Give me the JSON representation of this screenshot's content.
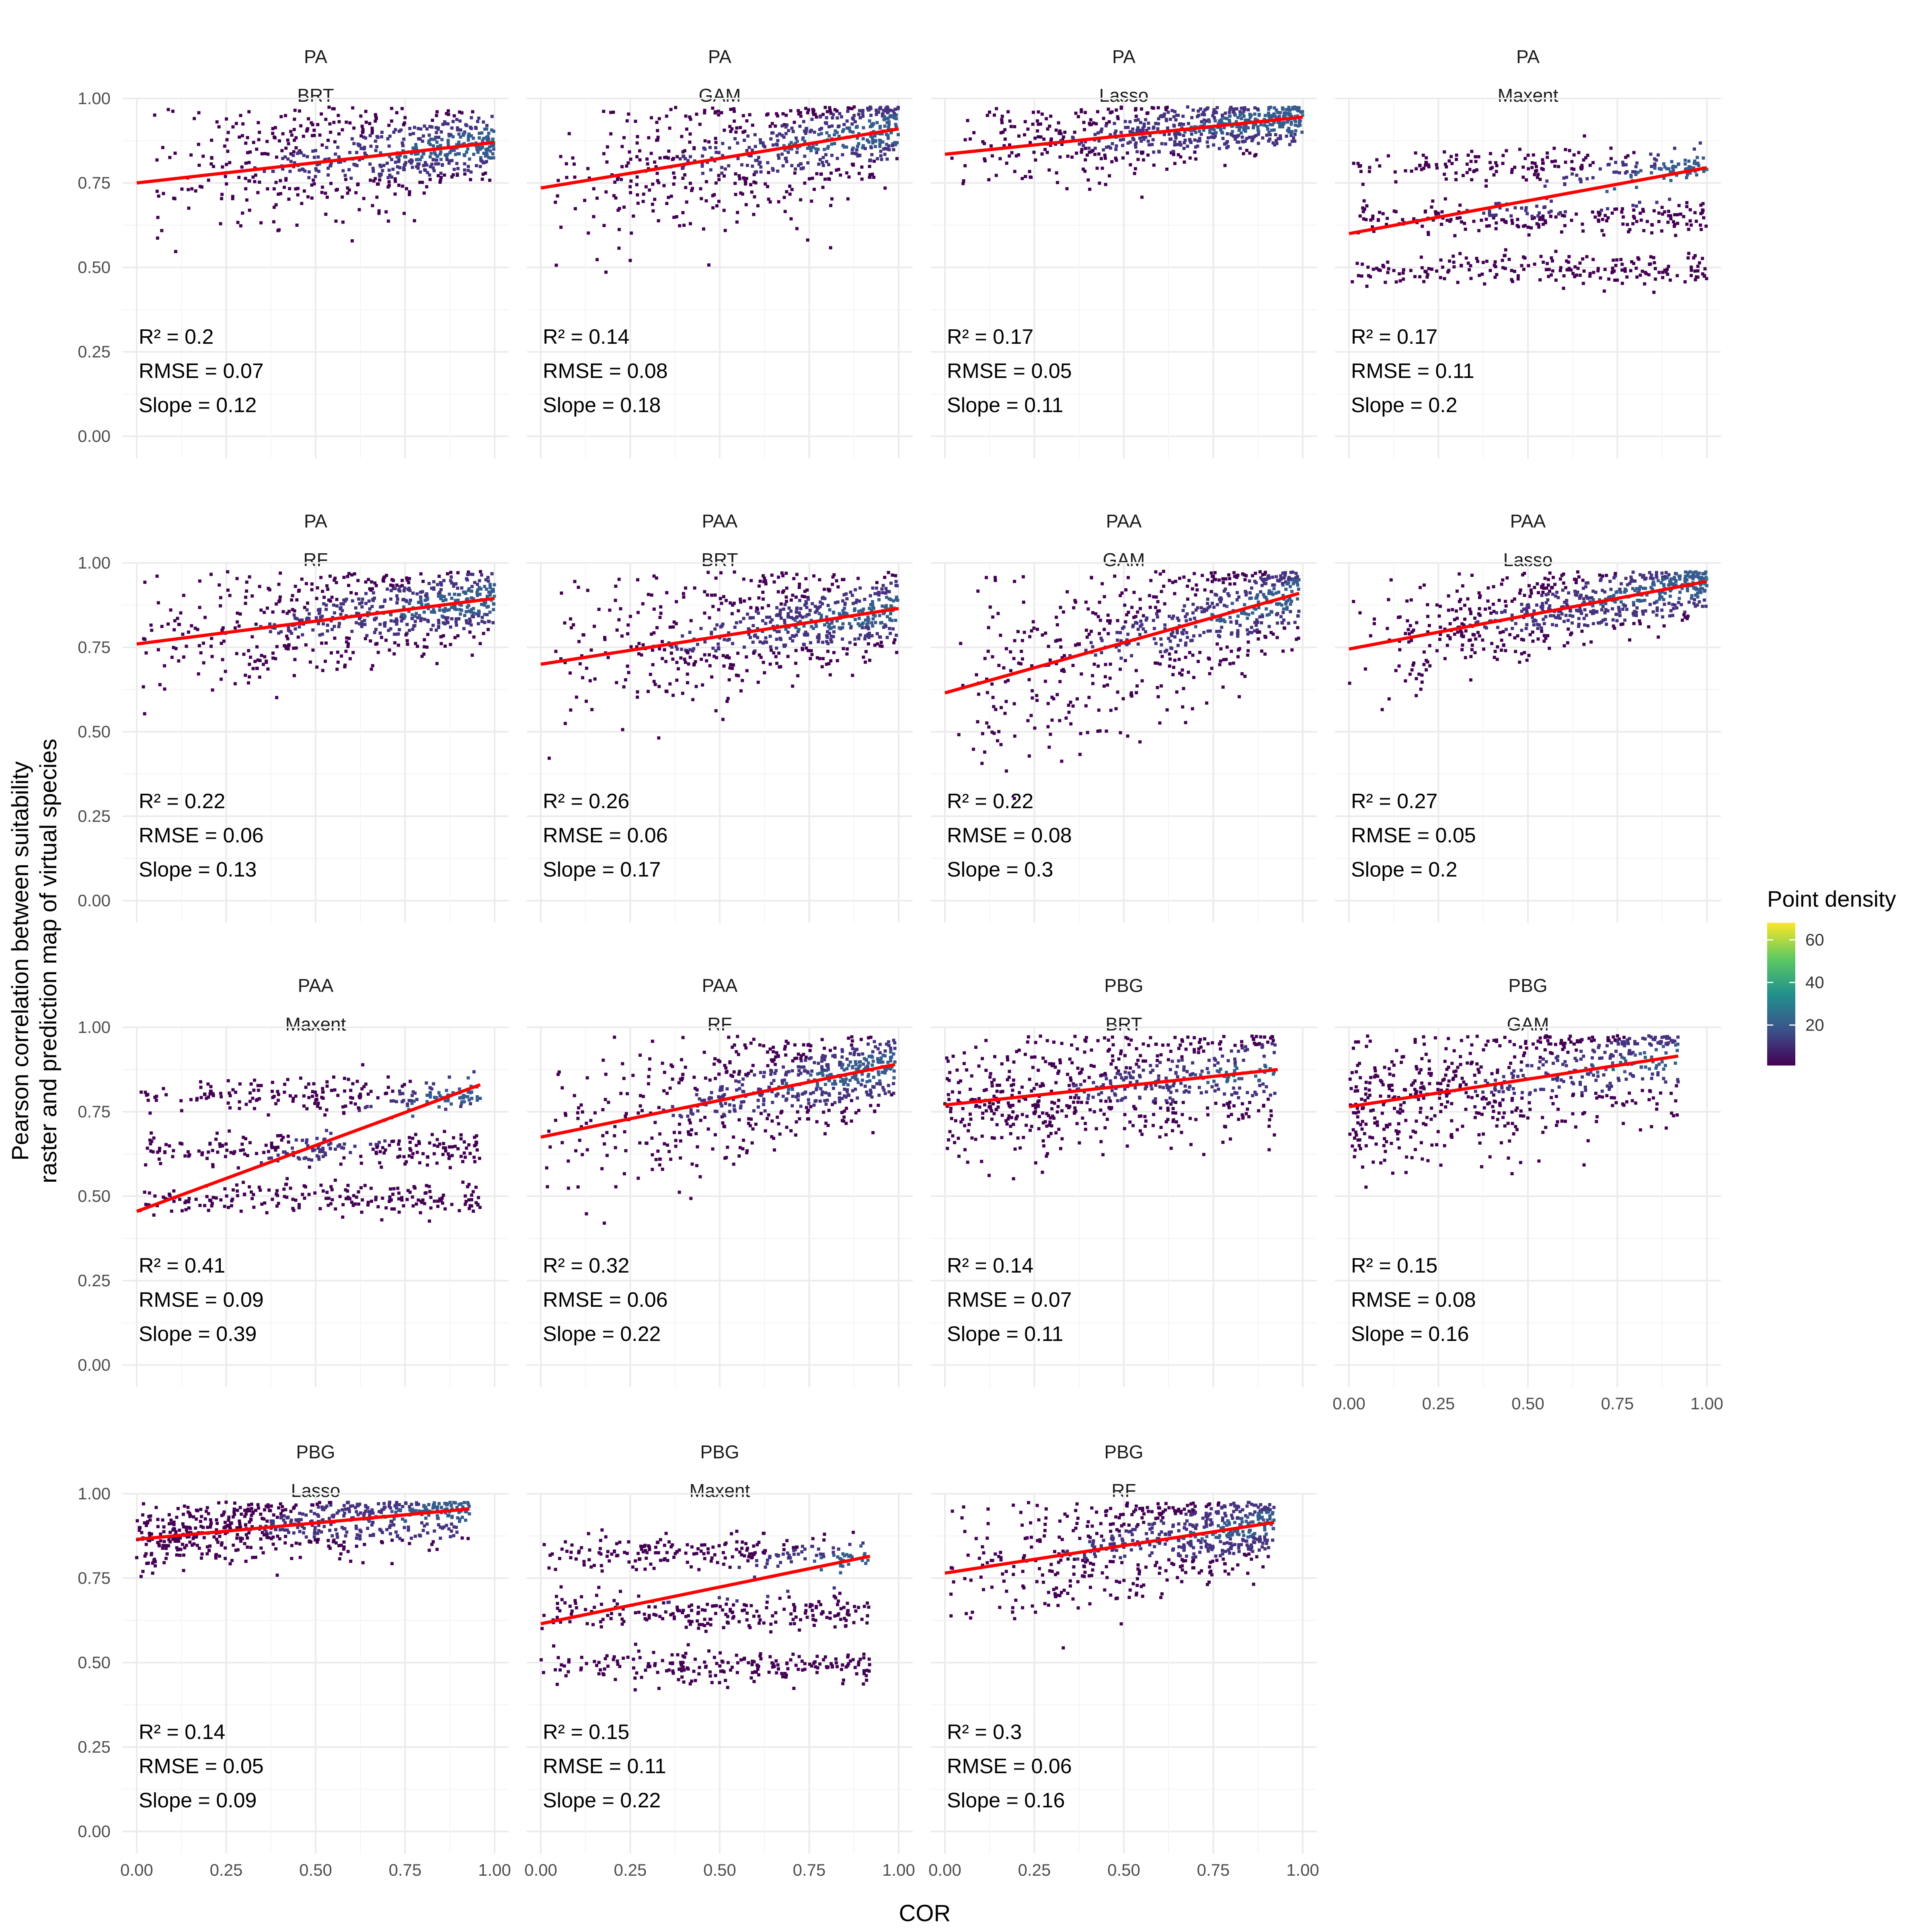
{
  "chart_data": {
    "type": "scatter",
    "xlabel": "COR",
    "ylabel_lines": [
      "Pearson correlation between suitability",
      "raster and prediction map of virtual species"
    ],
    "xlim": [
      0,
      1
    ],
    "ylim": [
      0,
      1
    ],
    "x_ticks": [
      "0.00",
      "0.25",
      "0.50",
      "0.75",
      "1.00"
    ],
    "y_ticks": [
      "0.00",
      "0.25",
      "0.50",
      "0.75",
      "1.00"
    ],
    "grid": true,
    "trend_color": "#ff0000",
    "legend": {
      "title": "Point density",
      "placement": "right",
      "ticks": [
        "20",
        "40",
        "60"
      ],
      "tick_values": [
        20,
        40,
        60
      ],
      "range": [
        1,
        68
      ],
      "colors": [
        "#440154",
        "#3b528b",
        "#21918c",
        "#5ec962",
        "#fde725"
      ]
    },
    "panels": [
      {
        "group": "PA",
        "model": "BRT",
        "r2": "R² = 0.2",
        "rmse": "RMSE = 0.07",
        "slope": "Slope = 0.12",
        "line_x": [
          0,
          1
        ],
        "line_y": [
          0.75,
          0.87
        ],
        "x_range": [
          0,
          1
        ],
        "y_center": 0.82,
        "y_spread": 0.06,
        "cloud": "cone"
      },
      {
        "group": "PA",
        "model": "GAM",
        "r2": "R² = 0.14",
        "rmse": "RMSE = 0.08",
        "slope": "Slope = 0.18",
        "line_x": [
          0,
          1
        ],
        "line_y": [
          0.735,
          0.91
        ],
        "x_range": [
          0,
          1
        ],
        "y_center": 0.83,
        "y_spread": 0.08,
        "cloud": "cone"
      },
      {
        "group": "PA",
        "model": "Lasso",
        "r2": "R² = 0.17",
        "rmse": "RMSE = 0.05",
        "slope": "Slope = 0.11",
        "line_x": [
          0,
          1
        ],
        "line_y": [
          0.835,
          0.945
        ],
        "x_range": [
          0,
          1
        ],
        "y_center": 0.9,
        "y_spread": 0.04,
        "cloud": "cone"
      },
      {
        "group": "PA",
        "model": "Maxent",
        "r2": "R² = 0.17",
        "rmse": "RMSE = 0.11",
        "slope": "Slope = 0.2",
        "line_x": [
          0,
          1
        ],
        "line_y": [
          0.6,
          0.795
        ],
        "x_range": [
          0,
          1
        ],
        "bands": [
          0.8,
          0.65,
          0.49
        ],
        "cloud": "bands"
      },
      {
        "group": "PA",
        "model": "RF",
        "r2": "R² = 0.22",
        "rmse": "RMSE = 0.06",
        "slope": "Slope = 0.13",
        "line_x": [
          0,
          1
        ],
        "line_y": [
          0.76,
          0.895
        ],
        "x_range": [
          0,
          1
        ],
        "y_center": 0.84,
        "y_spread": 0.06,
        "cloud": "cone"
      },
      {
        "group": "PAA",
        "model": "BRT",
        "r2": "R² = 0.26",
        "rmse": "RMSE = 0.06",
        "slope": "Slope = 0.17",
        "line_x": [
          0,
          1
        ],
        "line_y": [
          0.7,
          0.865
        ],
        "x_range": [
          0,
          1
        ],
        "y_center": 0.81,
        "y_spread": 0.07,
        "cloud": "cone"
      },
      {
        "group": "PAA",
        "model": "GAM",
        "r2": "R² = 0.22",
        "rmse": "RMSE = 0.08",
        "slope": "Slope = 0.3",
        "line_x": [
          0,
          0.99
        ],
        "line_y": [
          0.615,
          0.91
        ],
        "x_range": [
          0,
          0.99
        ],
        "y_center": 0.82,
        "y_spread": 0.09,
        "cloud": "cone"
      },
      {
        "group": "PAA",
        "model": "Lasso",
        "r2": "R² = 0.27",
        "rmse": "RMSE = 0.05",
        "slope": "Slope = 0.2",
        "line_x": [
          0,
          1
        ],
        "line_y": [
          0.745,
          0.945
        ],
        "x_range": [
          0,
          1
        ],
        "y_center": 0.88,
        "y_spread": 0.05,
        "cloud": "cone"
      },
      {
        "group": "PAA",
        "model": "Maxent",
        "r2": "R² = 0.41",
        "rmse": "RMSE = 0.09",
        "slope": "Slope = 0.39",
        "line_x": [
          0,
          0.96
        ],
        "line_y": [
          0.455,
          0.83
        ],
        "x_range": [
          0,
          0.96
        ],
        "bands": [
          0.8,
          0.64,
          0.49
        ],
        "cloud": "bands"
      },
      {
        "group": "PAA",
        "model": "RF",
        "r2": "R² = 0.32",
        "rmse": "RMSE = 0.06",
        "slope": "Slope = 0.22",
        "line_x": [
          0,
          0.99
        ],
        "line_y": [
          0.675,
          0.89
        ],
        "x_range": [
          0,
          0.99
        ],
        "y_center": 0.84,
        "y_spread": 0.07,
        "cloud": "cone"
      },
      {
        "group": "PBG",
        "model": "BRT",
        "r2": "R² = 0.14",
        "rmse": "RMSE = 0.07",
        "slope": "Slope = 0.11",
        "line_x": [
          0,
          0.93
        ],
        "line_y": [
          0.77,
          0.875
        ],
        "x_range": [
          0,
          0.93
        ],
        "y_center": 0.8,
        "y_spread": 0.07,
        "cloud": "flat"
      },
      {
        "group": "PBG",
        "model": "GAM",
        "r2": "R² = 0.15",
        "rmse": "RMSE = 0.08",
        "slope": "Slope = 0.16",
        "line_x": [
          0,
          0.92
        ],
        "line_y": [
          0.765,
          0.915
        ],
        "x_range": [
          0,
          0.92
        ],
        "y_center": 0.81,
        "y_spread": 0.08,
        "cloud": "flat"
      },
      {
        "group": "PBG",
        "model": "Lasso",
        "r2": "R² = 0.14",
        "rmse": "RMSE = 0.05",
        "slope": "Slope = 0.09",
        "line_x": [
          0,
          0.93
        ],
        "line_y": [
          0.865,
          0.955
        ],
        "x_range": [
          0,
          0.93
        ],
        "y_center": 0.9,
        "y_spread": 0.04,
        "cloud": "flat"
      },
      {
        "group": "PBG",
        "model": "Maxent",
        "r2": "R² = 0.15",
        "rmse": "RMSE = 0.11",
        "slope": "Slope = 0.22",
        "line_x": [
          0,
          0.92
        ],
        "line_y": [
          0.615,
          0.815
        ],
        "x_range": [
          0,
          0.92
        ],
        "bands": [
          0.82,
          0.65,
          0.49
        ],
        "cloud": "bands"
      },
      {
        "group": "PBG",
        "model": "RF",
        "r2": "R² = 0.3",
        "rmse": "RMSE = 0.06",
        "slope": "Slope = 0.16",
        "line_x": [
          0,
          0.92
        ],
        "line_y": [
          0.765,
          0.915
        ],
        "x_range": [
          0,
          0.92
        ],
        "y_center": 0.83,
        "y_spread": 0.06,
        "cloud": "cone"
      }
    ]
  }
}
